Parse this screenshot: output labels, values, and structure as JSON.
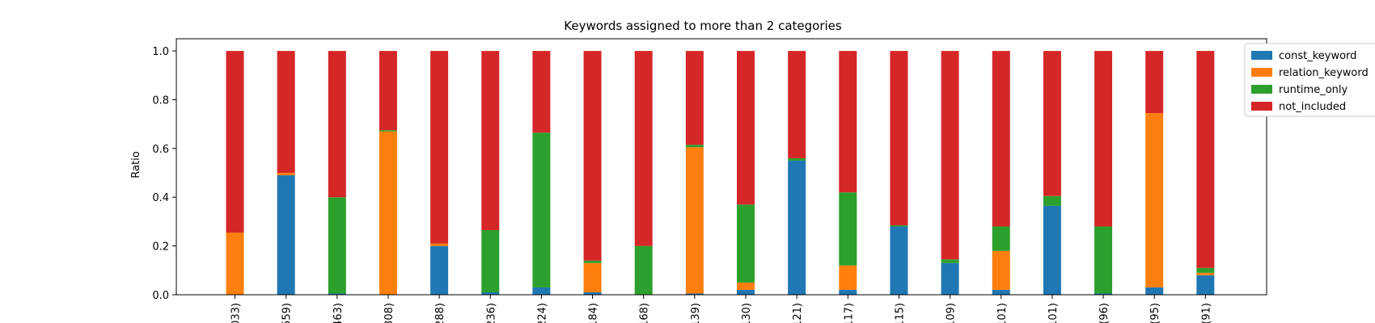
{
  "chart_data": {
    "type": "bar",
    "stacked": true,
    "title": "Keywords assigned to more than 2 categories",
    "xlabel": "",
    "ylabel": "Ratio",
    "ylim": [
      0,
      1.05
    ],
    "yticks": [
      "0.0",
      "0.2",
      "0.4",
      "0.6",
      "0.8",
      "1.0"
    ],
    "categories": [
      "033)",
      "559)",
      "463)",
      "308)",
      "288)",
      "236)",
      "224)",
      "184)",
      "168)",
      "139)",
      "130)",
      "121)",
      "117)",
      "115)",
      "109)",
      "101)",
      "101)",
      "(96)",
      "(95)",
      "(91)"
    ],
    "series": [
      {
        "name": "const_keyword",
        "color": "#1f77b4",
        "values": [
          0.0,
          0.49,
          0.005,
          0.0,
          0.2,
          0.01,
          0.03,
          0.01,
          0.0,
          0.005,
          0.02,
          0.55,
          0.02,
          0.28,
          0.13,
          0.02,
          0.365,
          0.005,
          0.03,
          0.08
        ]
      },
      {
        "name": "relation_keyword",
        "color": "#ff7f0e",
        "values": [
          0.255,
          0.01,
          0.0,
          0.67,
          0.01,
          0.0,
          0.0,
          0.12,
          0.0,
          0.6,
          0.03,
          0.0,
          0.1,
          0.0,
          0.0,
          0.16,
          0.0,
          0.0,
          0.715,
          0.01
        ]
      },
      {
        "name": "runtime_only",
        "color": "#2ca02c",
        "values": [
          0.0,
          0.0,
          0.395,
          0.005,
          0.0,
          0.255,
          0.635,
          0.01,
          0.2,
          0.01,
          0.32,
          0.01,
          0.3,
          0.005,
          0.015,
          0.1,
          0.04,
          0.275,
          0.0,
          0.02
        ]
      },
      {
        "name": "not_included",
        "color": "#d62728",
        "values": [
          0.745,
          0.5,
          0.6,
          0.325,
          0.79,
          0.735,
          0.335,
          0.86,
          0.8,
          0.385,
          0.63,
          0.44,
          0.58,
          0.715,
          0.855,
          0.72,
          0.595,
          0.72,
          0.255,
          0.89
        ]
      }
    ],
    "grid": false,
    "legend_position": "upper-right-outside"
  }
}
